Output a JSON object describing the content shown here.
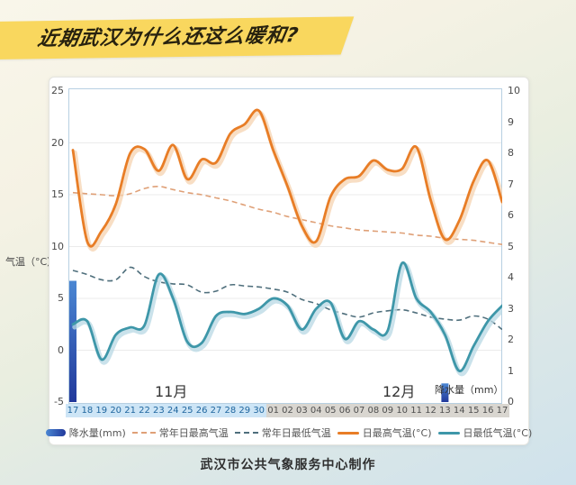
{
  "banner": {
    "title": "近期武汉为什么还这么暖和?",
    "bg_color": "#f9d75e",
    "text_color": "#28220f"
  },
  "caption": "武汉市公共气象服务中心制作",
  "chart": {
    "temp_axis_label": "气温（°C）",
    "precip_axis_label": "降水量（mm）",
    "month_labels": [
      "11月",
      "12月"
    ],
    "left_ticks": [
      "25",
      "20",
      "15",
      "10",
      "5",
      "0",
      "-5"
    ],
    "right_ticks": [
      "10",
      "9",
      "8",
      "7",
      "6",
      "5",
      "4",
      "3",
      "2",
      "1",
      "0"
    ],
    "legend": [
      {
        "label": "降水量(mm)",
        "swatch": "bar"
      },
      {
        "label": "常年日最高气温",
        "swatch": "dash",
        "color": "#dfa077"
      },
      {
        "label": "常年日最低气温",
        "swatch": "dash",
        "color": "#4f6f7c"
      },
      {
        "label": "日最高气温(°C)",
        "swatch": "line",
        "color": "#e87d26"
      },
      {
        "label": "日最低气温(°C)",
        "swatch": "line",
        "color": "#3e97a9"
      }
    ]
  },
  "colors": {
    "grid": "#ebebeb",
    "plot_border": "#b7d0e2",
    "bar_top": "#4b87d3",
    "bar_bottom": "#21389b",
    "nov_band_bg": "#cde5f6",
    "nov_band_text": "#21679f",
    "dec_band_bg": "#d9d6d0",
    "dec_band_text": "#4f4f4f",
    "halo_teal": "#b8d8e4",
    "halo_orange": "#f5d3b0"
  },
  "chart_data": {
    "type": "line+bar",
    "title": "近期武汉为什么还这么暖和?",
    "x_dates": [
      "17",
      "18",
      "19",
      "20",
      "21",
      "22",
      "23",
      "24",
      "25",
      "26",
      "27",
      "28",
      "29",
      "30",
      "01",
      "02",
      "03",
      "04",
      "05",
      "06",
      "07",
      "08",
      "09",
      "10",
      "11",
      "12",
      "13",
      "14",
      "15",
      "16",
      "17"
    ],
    "month_split_index": 14,
    "months": [
      "11月",
      "12月"
    ],
    "temp_axis": {
      "label": "气温（°C）",
      "min": -5,
      "max": 25,
      "tick_step": 5
    },
    "precip_axis": {
      "label": "降水量（mm）",
      "min": 0,
      "max": 10,
      "tick_step": 1
    },
    "grid": true,
    "legend_position": "bottom",
    "series": [
      {
        "name": "日最高气温(°C)",
        "type": "line",
        "style": "solid",
        "axis": "temp",
        "color": "#e87d26",
        "values": [
          19.3,
          10.5,
          11.5,
          14.1,
          19.0,
          19.4,
          17.3,
          19.8,
          16.5,
          18.4,
          18.1,
          20.9,
          21.8,
          23.1,
          19.3,
          15.8,
          12.0,
          10.5,
          14.8,
          16.5,
          16.8,
          18.3,
          17.4,
          17.5,
          19.6,
          14.5,
          10.7,
          12.5,
          16.3,
          18.3,
          14.3
        ]
      },
      {
        "name": "常年日最高气温",
        "type": "line",
        "style": "dashed",
        "axis": "temp",
        "color": "#dfa077",
        "values": [
          15.2,
          15.1,
          15.0,
          14.9,
          15.1,
          15.6,
          15.8,
          15.5,
          15.2,
          15.0,
          14.7,
          14.4,
          14.0,
          13.6,
          13.3,
          12.9,
          12.6,
          12.3,
          12.0,
          11.8,
          11.6,
          11.5,
          11.4,
          11.3,
          11.1,
          11.0,
          10.8,
          10.7,
          10.6,
          10.4,
          10.2
        ]
      },
      {
        "name": "日最低气温(°C)",
        "type": "line",
        "style": "solid",
        "axis": "temp",
        "color": "#3e97a9",
        "values": [
          2.5,
          2.8,
          -0.9,
          1.5,
          2.2,
          2.4,
          7.3,
          5.0,
          0.8,
          0.7,
          3.3,
          3.7,
          3.5,
          4.0,
          5.0,
          4.3,
          2.0,
          4.0,
          4.6,
          1.1,
          2.8,
          2.0,
          1.9,
          8.4,
          5.0,
          3.7,
          1.5,
          -2.0,
          0.4,
          2.8,
          4.3
        ]
      },
      {
        "name": "常年日最低气温",
        "type": "line",
        "style": "dashed",
        "axis": "temp",
        "color": "#4f6f7c",
        "values": [
          7.7,
          7.3,
          6.8,
          6.8,
          8.0,
          7.1,
          6.6,
          6.4,
          6.3,
          5.6,
          5.7,
          6.3,
          6.2,
          6.1,
          5.9,
          5.6,
          4.9,
          4.5,
          3.9,
          3.5,
          3.2,
          3.6,
          3.8,
          3.9,
          3.6,
          3.2,
          3.0,
          2.9,
          3.3,
          3.0,
          2.0
        ]
      },
      {
        "name": "降水量(mm)",
        "type": "bar",
        "axis": "precip",
        "color": "#2b5cb8",
        "values": [
          3.9,
          0,
          0,
          0,
          0,
          0,
          0,
          0,
          0,
          0,
          0,
          0,
          0,
          0,
          0,
          0,
          0,
          0,
          0,
          0,
          0,
          0,
          0,
          0,
          0,
          0,
          0.6,
          0,
          0,
          0,
          0
        ]
      }
    ]
  }
}
